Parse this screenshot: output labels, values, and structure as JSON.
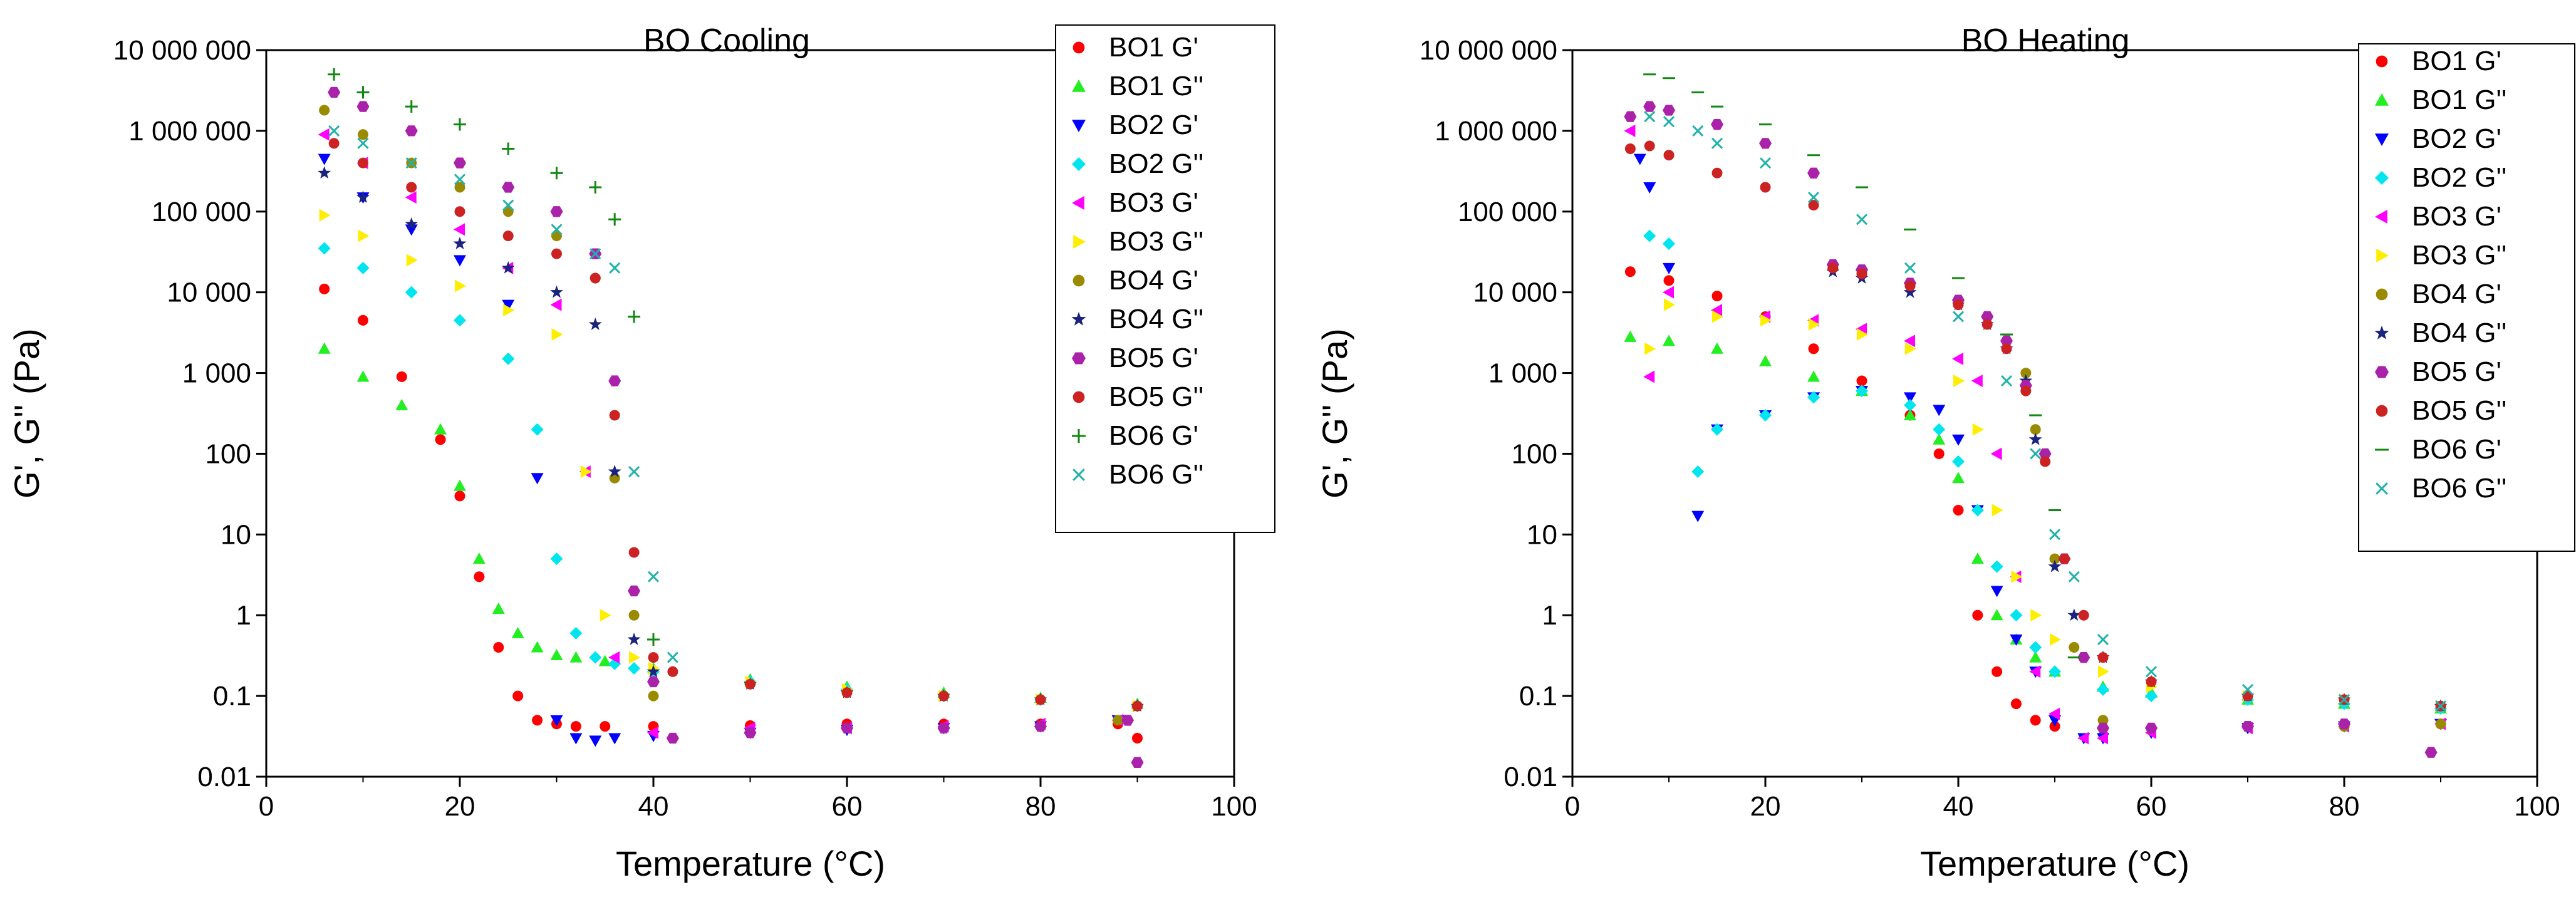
{
  "chart_data": [
    {
      "type": "scatter",
      "title": "BO Cooling",
      "xlabel": "Temperature (°C)",
      "ylabel": "G', G'' (Pa)",
      "xlim": [
        0,
        100
      ],
      "ylim": [
        0.01,
        10000000
      ],
      "yscale": "log",
      "x_ticks": [
        0,
        20,
        40,
        60,
        80,
        100
      ],
      "x_tick_labels": [
        "0",
        "20",
        "40",
        "60",
        "80",
        "100"
      ],
      "y_ticks": [
        0.01,
        0.1,
        1,
        10,
        100,
        1000,
        10000,
        100000,
        1000000,
        10000000
      ],
      "y_tick_labels": [
        "0.01",
        "0.1",
        "1",
        "10",
        "100",
        "1 000",
        "10 000",
        "100 000",
        "1 000 000",
        "10 000 000"
      ],
      "legend_position": "top-right",
      "series": [
        {
          "name": "BO1 G'",
          "color": "#ff0000",
          "marker": "circle",
          "x": [
            6,
            10,
            14,
            18,
            20,
            22,
            24,
            26,
            28,
            30,
            32,
            35,
            40,
            50,
            60,
            70,
            80,
            88,
            90
          ],
          "y": [
            11000,
            4500,
            900,
            150,
            30,
            3,
            0.4,
            0.1,
            0.05,
            0.045,
            0.042,
            0.042,
            0.042,
            0.043,
            0.045,
            0.045,
            0.045,
            0.045,
            0.03
          ]
        },
        {
          "name": "BO1 G''",
          "color": "#22ee22",
          "marker": "triangle-up",
          "x": [
            6,
            10,
            14,
            18,
            20,
            22,
            24,
            26,
            28,
            30,
            32,
            35,
            40,
            50,
            60,
            70,
            80,
            90
          ],
          "y": [
            2000,
            900,
            400,
            200,
            40,
            5,
            1.2,
            0.6,
            0.4,
            0.32,
            0.3,
            0.27,
            0.22,
            0.16,
            0.13,
            0.11,
            0.095,
            0.08
          ]
        },
        {
          "name": "BO2 G'",
          "color": "#0000ff",
          "marker": "triangle-down",
          "x": [
            6,
            10,
            15,
            20,
            25,
            28,
            30,
            32,
            34,
            36,
            40,
            50,
            60,
            70,
            80,
            88
          ],
          "y": [
            450000,
            150000,
            60000,
            25000,
            7000,
            50,
            0.05,
            0.03,
            0.028,
            0.03,
            0.032,
            0.035,
            0.038,
            0.04,
            0.042,
            0.05
          ]
        },
        {
          "name": "BO2 G''",
          "color": "#00e5ee",
          "marker": "diamond",
          "x": [
            6,
            10,
            15,
            20,
            25,
            28,
            30,
            32,
            34,
            36,
            38,
            40,
            50,
            60,
            70,
            80,
            90
          ],
          "y": [
            35000,
            20000,
            10000,
            4500,
            1500,
            200,
            5,
            0.6,
            0.3,
            0.25,
            0.22,
            0.2,
            0.15,
            0.12,
            0.1,
            0.09,
            0.075
          ]
        },
        {
          "name": "BO3 G'",
          "color": "#ff00ff",
          "marker": "triangle-left",
          "x": [
            6,
            10,
            15,
            20,
            25,
            30,
            33,
            36,
            40,
            50,
            60,
            70,
            80,
            88
          ],
          "y": [
            900000,
            400000,
            150000,
            60000,
            20000,
            7000,
            60,
            0.3,
            0.035,
            0.04,
            0.04,
            0.042,
            0.045,
            0.05
          ]
        },
        {
          "name": "BO3 G''",
          "color": "#ffee00",
          "marker": "triangle-right",
          "x": [
            6,
            10,
            15,
            20,
            25,
            30,
            33,
            35,
            38,
            40,
            50,
            60,
            70,
            80,
            90
          ],
          "y": [
            90000,
            50000,
            25000,
            12000,
            6000,
            3000,
            60,
            1,
            0.3,
            0.22,
            0.15,
            0.12,
            0.1,
            0.09,
            0.075
          ]
        },
        {
          "name": "BO4 G'",
          "color": "#9a8a00",
          "marker": "circle",
          "x": [
            6,
            10,
            15,
            20,
            25,
            30,
            34,
            36,
            38,
            40,
            42,
            50,
            60,
            70,
            80,
            88
          ],
          "y": [
            1800000,
            900000,
            400000,
            200000,
            100000,
            50000,
            15000,
            50,
            1,
            0.1,
            0.03,
            0.035,
            0.04,
            0.04,
            0.042,
            0.05
          ]
        },
        {
          "name": "BO4 G''",
          "color": "#1a237e",
          "marker": "star",
          "x": [
            6,
            10,
            15,
            20,
            25,
            30,
            34,
            36,
            38,
            40,
            50,
            60,
            70,
            80,
            90
          ],
          "y": [
            300000,
            150000,
            70000,
            40000,
            20000,
            10000,
            4000,
            60,
            0.5,
            0.2,
            0.14,
            0.11,
            0.1,
            0.09,
            0.075
          ]
        },
        {
          "name": "BO5 G'",
          "color": "#aa22aa",
          "marker": "hexagon",
          "x": [
            7,
            10,
            15,
            20,
            25,
            30,
            34,
            36,
            38,
            40,
            42,
            50,
            60,
            70,
            80,
            89,
            90
          ],
          "y": [
            3000000,
            2000000,
            1000000,
            400000,
            200000,
            100000,
            30000,
            800,
            2,
            0.15,
            0.03,
            0.035,
            0.04,
            0.04,
            0.042,
            0.05,
            0.015
          ]
        },
        {
          "name": "BO5 G''",
          "color": "#cc2222",
          "marker": "circle",
          "x": [
            7,
            10,
            15,
            20,
            25,
            30,
            34,
            36,
            38,
            40,
            42,
            50,
            60,
            70,
            80,
            90
          ],
          "y": [
            700000,
            400000,
            200000,
            100000,
            50000,
            30000,
            15000,
            300,
            6,
            0.3,
            0.2,
            0.14,
            0.11,
            0.1,
            0.09,
            0.075
          ]
        },
        {
          "name": "BO6 G'",
          "color": "#118811",
          "marker": "plus",
          "x": [
            7,
            10,
            15,
            20,
            25,
            30,
            34,
            36,
            38,
            40
          ],
          "y": [
            5000000,
            3000000,
            2000000,
            1200000,
            600000,
            300000,
            200000,
            80000,
            5000,
            0.5
          ]
        },
        {
          "name": "BO6 G''",
          "color": "#20b2aa",
          "marker": "cross",
          "x": [
            7,
            10,
            15,
            20,
            25,
            30,
            34,
            36,
            38,
            40,
            42
          ],
          "y": [
            1000000,
            700000,
            400000,
            250000,
            120000,
            60000,
            30000,
            20000,
            60,
            3,
            0.3
          ]
        }
      ]
    },
    {
      "type": "scatter",
      "title": "BO Heating",
      "xlabel": "Temperature (°C)",
      "ylabel": "G', G'' (Pa)",
      "xlim": [
        0,
        100
      ],
      "ylim": [
        0.01,
        10000000
      ],
      "yscale": "log",
      "x_ticks": [
        0,
        20,
        40,
        60,
        80,
        100
      ],
      "x_tick_labels": [
        "0",
        "20",
        "40",
        "60",
        "80",
        "100"
      ],
      "y_ticks": [
        0.01,
        0.1,
        1,
        10,
        100,
        1000,
        10000,
        100000,
        1000000,
        10000000
      ],
      "y_tick_labels": [
        "0.01",
        "0.1",
        "1",
        "10",
        "100",
        "1 000",
        "10 000",
        "100 000",
        "1 000 000",
        "10 000 000"
      ],
      "legend_position": "top-right",
      "series": [
        {
          "name": "BO1 G'",
          "color": "#ff0000",
          "marker": "circle",
          "x": [
            6,
            10,
            15,
            20,
            25,
            30,
            35,
            38,
            40,
            42,
            44,
            46,
            48,
            50,
            55,
            60,
            70,
            80,
            90
          ],
          "y": [
            18000,
            14000,
            9000,
            5000,
            2000,
            800,
            300,
            100,
            20,
            1,
            0.2,
            0.08,
            0.05,
            0.042,
            0.04,
            0.04,
            0.042,
            0.042,
            0.045
          ]
        },
        {
          "name": "BO1 G''",
          "color": "#22ee22",
          "marker": "triangle-up",
          "x": [
            6,
            10,
            15,
            20,
            25,
            30,
            35,
            38,
            40,
            42,
            44,
            46,
            48,
            50,
            55,
            60,
            70,
            80,
            90
          ],
          "y": [
            2800,
            2500,
            2000,
            1400,
            900,
            600,
            300,
            150,
            50,
            5,
            1,
            0.5,
            0.3,
            0.2,
            0.13,
            0.11,
            0.09,
            0.08,
            0.07
          ]
        },
        {
          "name": "BO2 G'",
          "color": "#0000ff",
          "marker": "triangle-down",
          "x": [
            7,
            8,
            10,
            13,
            15,
            20,
            25,
            30,
            35,
            38,
            40,
            42,
            44,
            46,
            48,
            50,
            53,
            55,
            60,
            70,
            80,
            90
          ],
          "y": [
            450000,
            200000,
            20000,
            17,
            200,
            300,
            500,
            600,
            500,
            350,
            150,
            20,
            2,
            0.5,
            0.2,
            0.05,
            0.03,
            0.03,
            0.035,
            0.04,
            0.042,
            0.045
          ]
        },
        {
          "name": "BO2 G''",
          "color": "#00e5ee",
          "marker": "diamond",
          "x": [
            8,
            10,
            13,
            15,
            20,
            25,
            30,
            35,
            38,
            40,
            42,
            44,
            46,
            48,
            50,
            55,
            60,
            70,
            80,
            90
          ],
          "y": [
            50000,
            40000,
            60,
            200,
            300,
            500,
            600,
            400,
            200,
            80,
            20,
            4,
            1,
            0.4,
            0.2,
            0.12,
            0.1,
            0.09,
            0.08,
            0.07
          ]
        },
        {
          "name": "BO3 G'",
          "color": "#ff00ff",
          "marker": "triangle-left",
          "x": [
            6,
            8,
            10,
            15,
            20,
            25,
            30,
            35,
            40,
            42,
            44,
            46,
            48,
            50,
            53,
            55,
            60,
            70,
            80,
            90
          ],
          "y": [
            1000000,
            900,
            10000,
            6000,
            5000,
            4500,
            3500,
            2500,
            1500,
            800,
            100,
            3,
            0.2,
            0.06,
            0.03,
            0.03,
            0.035,
            0.04,
            0.042,
            0.045
          ]
        },
        {
          "name": "BO3 G''",
          "color": "#ffee00",
          "marker": "triangle-right",
          "x": [
            8,
            10,
            15,
            20,
            25,
            30,
            35,
            40,
            42,
            44,
            46,
            48,
            50,
            55,
            60,
            70,
            80,
            90
          ],
          "y": [
            2000,
            7000,
            5000,
            4500,
            4000,
            3000,
            2000,
            800,
            200,
            20,
            3,
            1,
            0.5,
            0.2,
            0.13,
            0.1,
            0.09,
            0.075
          ]
        },
        {
          "name": "BO4 G'",
          "color": "#9a8a00",
          "marker": "circle",
          "x": [
            27,
            30,
            35,
            40,
            43,
            45,
            47,
            48,
            50,
            52,
            55,
            60,
            70,
            80,
            90
          ],
          "y": [
            20000,
            17000,
            12000,
            8000,
            5000,
            2500,
            1000,
            200,
            5,
            0.4,
            0.05,
            0.04,
            0.042,
            0.042,
            0.045
          ]
        },
        {
          "name": "BO4 G''",
          "color": "#1a237e",
          "marker": "star",
          "x": [
            27,
            30,
            35,
            40,
            43,
            45,
            47,
            48,
            50,
            52,
            55,
            60,
            70,
            80,
            90
          ],
          "y": [
            18000,
            15000,
            10000,
            7000,
            4000,
            2000,
            800,
            150,
            4,
            1,
            0.3,
            0.15,
            0.1,
            0.09,
            0.075
          ]
        },
        {
          "name": "BO5 G'",
          "color": "#aa22aa",
          "marker": "hexagon",
          "x": [
            6,
            8,
            10,
            15,
            20,
            25,
            27,
            30,
            35,
            40,
            43,
            45,
            47,
            49,
            51,
            53,
            55,
            60,
            70,
            80,
            89
          ],
          "y": [
            1500000,
            2000000,
            1800000,
            1200000,
            700000,
            300000,
            22000,
            19000,
            13000,
            8000,
            5000,
            2500,
            700,
            100,
            5,
            0.3,
            0.04,
            0.04,
            0.042,
            0.045,
            0.02
          ]
        },
        {
          "name": "BO5 G''",
          "color": "#cc2222",
          "marker": "circle",
          "x": [
            6,
            8,
            10,
            15,
            20,
            25,
            27,
            30,
            35,
            40,
            43,
            45,
            47,
            49,
            51,
            53,
            55,
            60,
            70,
            80,
            90
          ],
          "y": [
            600000,
            650000,
            500000,
            300000,
            200000,
            120000,
            20000,
            17000,
            12000,
            7000,
            4000,
            2000,
            600,
            80,
            5,
            1,
            0.3,
            0.15,
            0.1,
            0.09,
            0.075
          ]
        },
        {
          "name": "BO6 G'",
          "color": "#118811",
          "marker": "dash",
          "x": [
            8,
            10,
            13,
            15,
            20,
            25,
            30,
            35,
            40,
            45,
            48,
            50,
            52
          ],
          "y": [
            5000000,
            4500000,
            3000000,
            2000000,
            1200000,
            500000,
            200000,
            60000,
            15000,
            3000,
            300,
            20,
            0.3
          ]
        },
        {
          "name": "BO6 G''",
          "color": "#20b2aa",
          "marker": "cross",
          "x": [
            8,
            10,
            13,
            15,
            20,
            25,
            30,
            35,
            40,
            45,
            48,
            50,
            52,
            55,
            60,
            70,
            80,
            90
          ],
          "y": [
            1500000,
            1300000,
            1000000,
            700000,
            400000,
            150000,
            80000,
            20000,
            5000,
            800,
            100,
            10,
            3,
            0.5,
            0.2,
            0.12,
            0.09,
            0.075
          ]
        }
      ]
    }
  ]
}
